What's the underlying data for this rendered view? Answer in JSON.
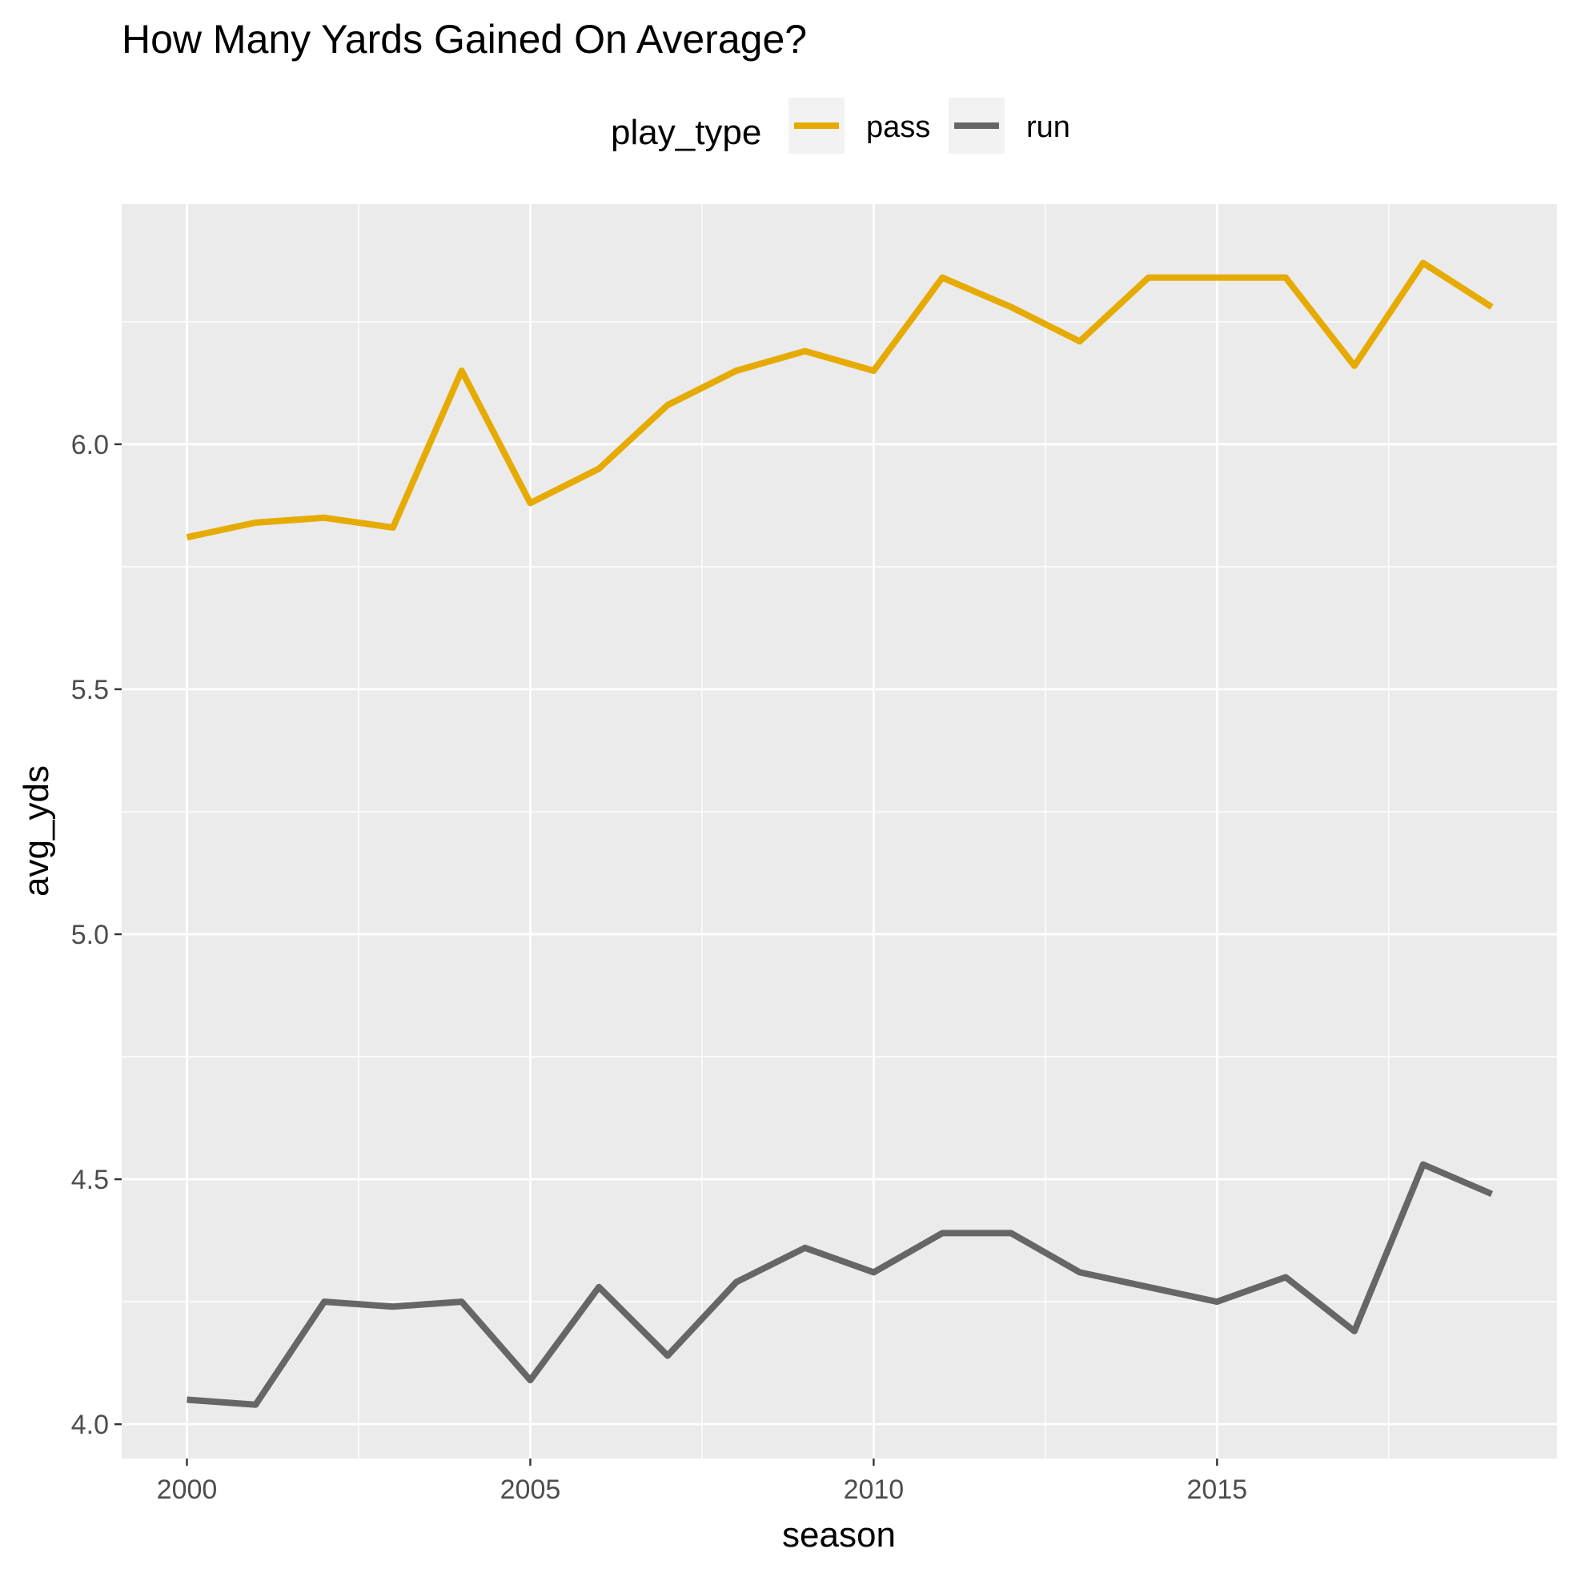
{
  "chart_data": {
    "type": "line",
    "title": "How Many Yards Gained On Average?",
    "xlabel": "season",
    "ylabel": "avg_yds",
    "xlim": [
      1999.05,
      2019.95
    ],
    "ylim": [
      3.93,
      6.49
    ],
    "xticks": [
      2000,
      2005,
      2010,
      2015
    ],
    "yticks": [
      4.0,
      4.5,
      5.0,
      5.5,
      6.0
    ],
    "xtick_labels": [
      "2000",
      "2005",
      "2010",
      "2015"
    ],
    "ytick_labels": [
      "4.0",
      "4.5",
      "5.0",
      "5.5",
      "6.0"
    ],
    "grid": true,
    "legend": {
      "title": "play_type",
      "position": "top"
    },
    "x": [
      2000,
      2001,
      2002,
      2003,
      2004,
      2005,
      2006,
      2007,
      2008,
      2009,
      2010,
      2011,
      2012,
      2013,
      2014,
      2015,
      2016,
      2017,
      2018,
      2019
    ],
    "series": [
      {
        "name": "pass",
        "color": "#E6AB02",
        "values": [
          5.81,
          5.84,
          5.85,
          5.83,
          6.15,
          5.88,
          5.95,
          6.08,
          6.15,
          6.19,
          6.15,
          6.34,
          6.28,
          6.21,
          6.34,
          6.34,
          6.34,
          6.16,
          6.37,
          6.28
        ]
      },
      {
        "name": "run",
        "color": "#666666",
        "values": [
          4.05,
          4.04,
          4.25,
          4.24,
          4.25,
          4.09,
          4.28,
          4.14,
          4.29,
          4.36,
          4.31,
          4.39,
          4.39,
          4.31,
          4.28,
          4.25,
          4.3,
          4.19,
          4.53,
          4.47
        ]
      }
    ]
  }
}
